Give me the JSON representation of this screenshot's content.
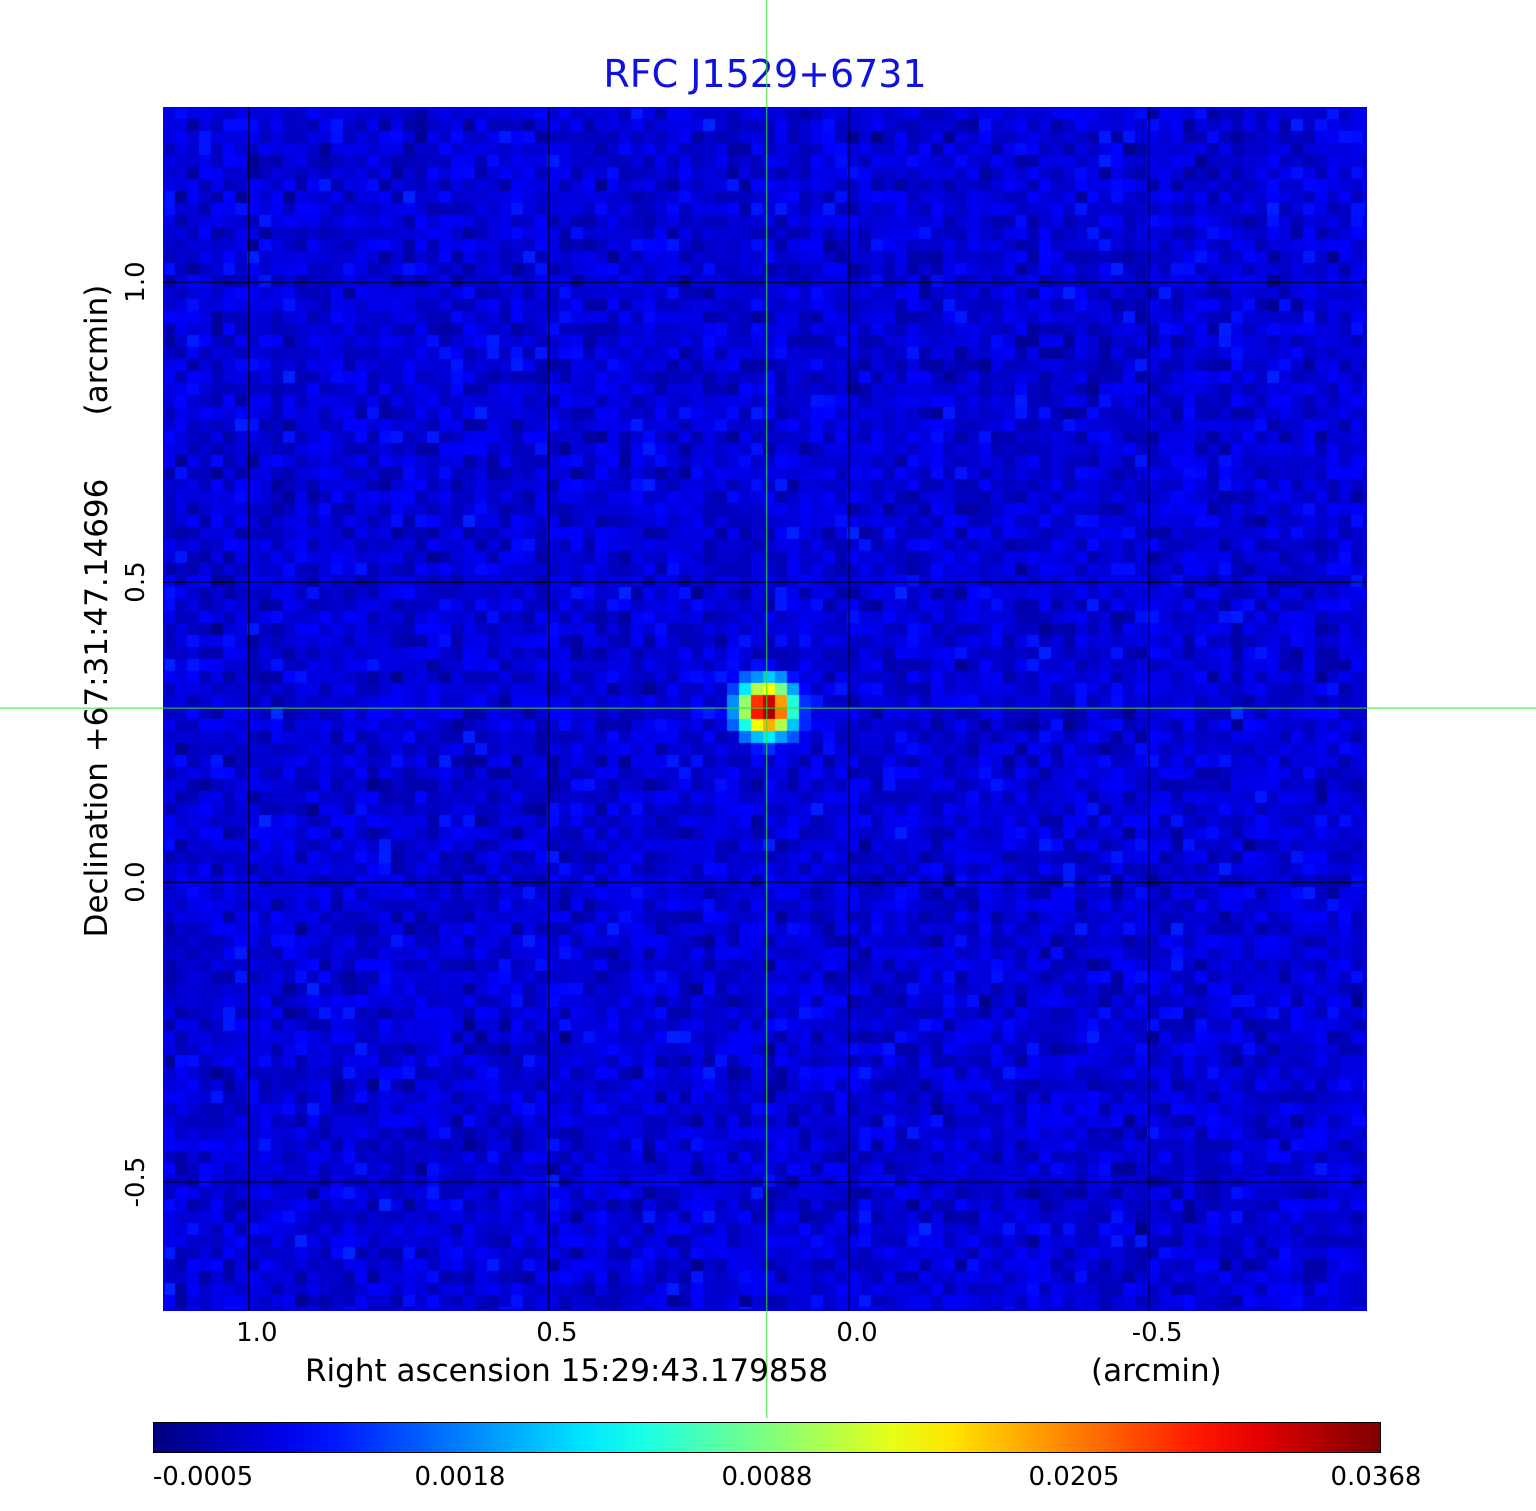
{
  "chart_data": {
    "type": "heatmap",
    "title": "RFC J1529+6731",
    "xlabel": "Right ascension  15:29:43.179858",
    "xunit": "(arcmin)",
    "ylabel": "Declination  +67:31:47.14696",
    "yunit": "(arcmin)",
    "xlim": [
      1.143,
      -0.863
    ],
    "ylim": [
      -0.715,
      1.292
    ],
    "xticks": [
      {
        "v": 1.0,
        "label": "1.0"
      },
      {
        "v": 0.5,
        "label": "0.5"
      },
      {
        "v": 0.0,
        "label": "0.0"
      },
      {
        "v": -0.5,
        "label": "-0.5"
      }
    ],
    "yticks": [
      {
        "v": 1.0,
        "label": "1.0"
      },
      {
        "v": 0.5,
        "label": "0.5"
      },
      {
        "v": 0.0,
        "label": "0.0"
      },
      {
        "v": -0.5,
        "label": "-0.5"
      }
    ],
    "grid": true,
    "grid_color": "#000000",
    "crosshair": {
      "x": 0.137,
      "y": 0.29,
      "color": "#33dd33"
    },
    "source_peak": {
      "x": 0.137,
      "y": 0.29,
      "value": 0.0368
    },
    "colormap": "jet",
    "colorbar": {
      "placement": "bottom",
      "range": [
        -0.0005,
        0.0368
      ],
      "ticks": [
        "-0.0005",
        "0.0018",
        "0.0088",
        "0.0205",
        "0.0368"
      ]
    },
    "title_color": "#1010e0",
    "frame_color": "#0000ee"
  }
}
